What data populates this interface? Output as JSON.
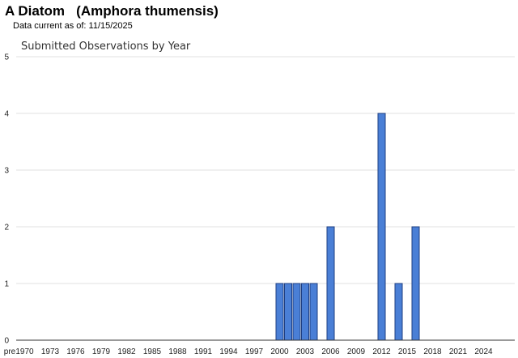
{
  "header": {
    "title": "A Diatom   (Amphora thumensis)",
    "data_date": "Data current as of: 11/15/2025"
  },
  "colors": {
    "bar_fill": "#4a7fd6",
    "bar_stroke": "#1f3f82",
    "gridline": "#e0e0e0",
    "axis": "#333333"
  },
  "chart_data": {
    "type": "bar",
    "title": "Submitted Observations by Year",
    "xlabel": "",
    "ylabel": "",
    "ylim": [
      0,
      5
    ],
    "y_ticks": [
      0,
      1,
      2,
      3,
      4,
      5
    ],
    "grid": true,
    "x_tick_labels": [
      "pre",
      "1970",
      "1973",
      "1976",
      "1979",
      "1982",
      "1985",
      "1988",
      "1991",
      "1994",
      "1997",
      "2000",
      "2003",
      "2006",
      "2009",
      "2012",
      "2015",
      "2018",
      "2021",
      "2024"
    ],
    "categories": [
      "pre",
      "1970",
      "1971",
      "1972",
      "1973",
      "1974",
      "1975",
      "1976",
      "1977",
      "1978",
      "1979",
      "1980",
      "1981",
      "1982",
      "1983",
      "1984",
      "1985",
      "1986",
      "1987",
      "1988",
      "1989",
      "1990",
      "1991",
      "1992",
      "1993",
      "1994",
      "1995",
      "1996",
      "1997",
      "1998",
      "1999",
      "2000",
      "2001",
      "2002",
      "2003",
      "2004",
      "2005",
      "2006",
      "2007",
      "2008",
      "2009",
      "2010",
      "2011",
      "2012",
      "2013",
      "2014",
      "2015",
      "2016",
      "2017",
      "2018",
      "2019",
      "2020",
      "2021",
      "2022",
      "2023",
      "2024",
      "2025"
    ],
    "values": [
      0,
      0,
      0,
      0,
      0,
      0,
      0,
      0,
      0,
      0,
      0,
      0,
      0,
      0,
      0,
      0,
      0,
      0,
      0,
      0,
      0,
      0,
      0,
      0,
      0,
      0,
      0,
      0,
      0,
      0,
      0,
      1,
      1,
      1,
      1,
      1,
      0,
      2,
      0,
      0,
      0,
      0,
      0,
      4,
      0,
      1,
      0,
      2,
      0,
      0,
      0,
      0,
      0,
      0,
      0,
      0,
      0
    ]
  }
}
